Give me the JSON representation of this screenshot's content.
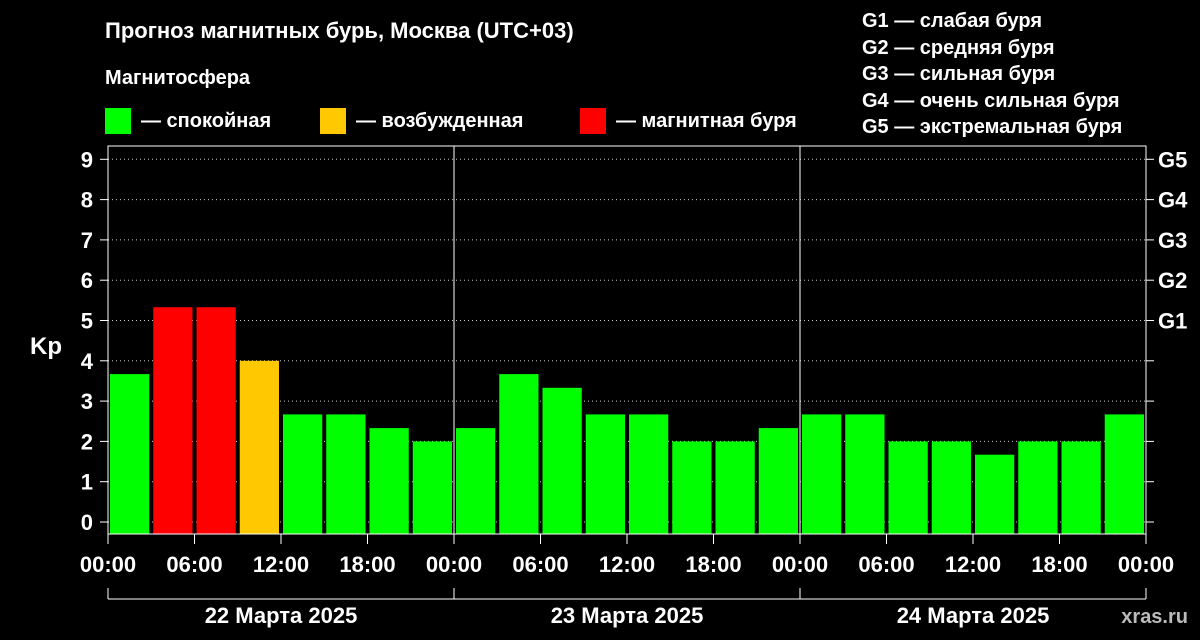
{
  "title": "Прогноз магнитных бурь, Москва (UTC+03)",
  "legend": {
    "title": "Магнитосфера",
    "items": [
      {
        "label": "— спокойная",
        "color": "#00ff00"
      },
      {
        "label": "— возбужденная",
        "color": "#ffc800"
      },
      {
        "label": "— магнитная буря",
        "color": "#ff0000"
      }
    ]
  },
  "g_scale_legend": [
    "G1 — слабая буря",
    "G2 — средняя буря",
    "G3 — сильная буря",
    "G4 — очень сильная буря",
    "G5 — экстремальная буря"
  ],
  "watermark": "xras.ru",
  "chart_data": {
    "type": "bar",
    "ylabel": "Kp",
    "ylim": [
      0,
      9
    ],
    "yticks": [
      "0",
      "1",
      "2",
      "3",
      "4",
      "5",
      "6",
      "7",
      "8",
      "9"
    ],
    "right_axis_labels": [
      {
        "label": "G1",
        "kp": 5
      },
      {
        "label": "G2",
        "kp": 6
      },
      {
        "label": "G3",
        "kp": 7
      },
      {
        "label": "G4",
        "kp": 8
      },
      {
        "label": "G5",
        "kp": 9
      }
    ],
    "xtick_labels": [
      "00:00",
      "06:00",
      "12:00",
      "18:00",
      "00:00",
      "06:00",
      "12:00",
      "18:00",
      "00:00",
      "06:00",
      "12:00",
      "18:00",
      "00:00"
    ],
    "days": [
      "22 Марта 2025",
      "23 Марта 2025",
      "24 Марта 2025"
    ],
    "values": [
      3.67,
      5.33,
      5.33,
      4.0,
      2.67,
      2.67,
      2.33,
      2.0,
      2.33,
      3.67,
      3.33,
      2.67,
      2.67,
      2.0,
      2.0,
      2.33,
      2.67,
      2.67,
      2.0,
      2.0,
      1.67,
      2.0,
      2.0,
      2.67
    ],
    "levels": [
      "quiet",
      "storm",
      "storm",
      "active",
      "quiet",
      "quiet",
      "quiet",
      "quiet",
      "quiet",
      "quiet",
      "quiet",
      "quiet",
      "quiet",
      "quiet",
      "quiet",
      "quiet",
      "quiet",
      "quiet",
      "quiet",
      "quiet",
      "quiet",
      "quiet",
      "quiet",
      "quiet"
    ],
    "level_colors": {
      "quiet": "#00ff00",
      "active": "#ffc800",
      "storm": "#ff0000"
    },
    "grid": true
  }
}
